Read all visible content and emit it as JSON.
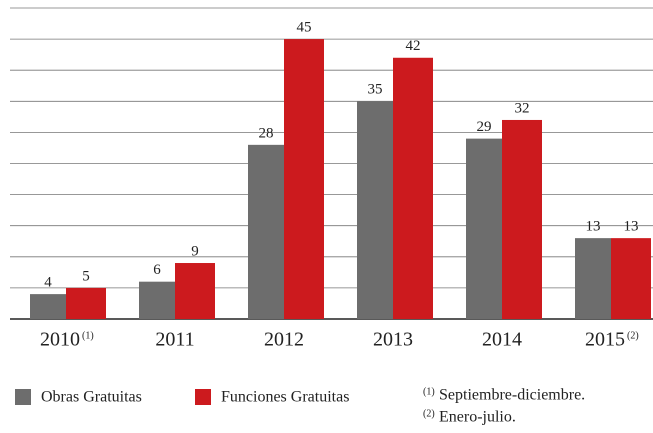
{
  "chart_data": {
    "type": "bar",
    "categories": [
      "2010",
      "2011",
      "2012",
      "2013",
      "2014",
      "2015"
    ],
    "category_notes": [
      "(1)",
      null,
      null,
      null,
      null,
      "(2)"
    ],
    "series": [
      {
        "name": "Obras Gratuitas",
        "color": "#6d6d6d",
        "values": [
          4,
          6,
          28,
          35,
          29,
          13
        ]
      },
      {
        "name": "Funciones Gratuitas",
        "color": "#cc1a1e",
        "values": [
          5,
          9,
          45,
          42,
          32,
          13
        ]
      }
    ],
    "ylim": [
      0,
      50
    ],
    "yticks": [
      0,
      5,
      10,
      15,
      20,
      25,
      30,
      35,
      40,
      45,
      50
    ],
    "grid": true,
    "footnotes": [
      {
        "mark": "(1)",
        "text": "Septiembre-diciembre."
      },
      {
        "mark": "(2)",
        "text": "Enero-julio."
      }
    ]
  }
}
